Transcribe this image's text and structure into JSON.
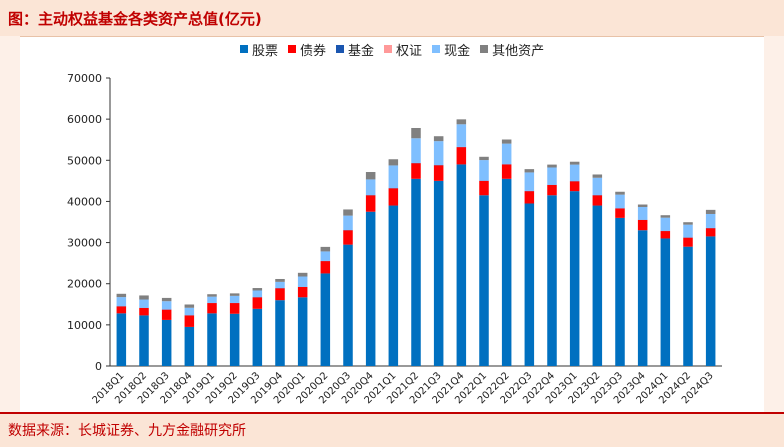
{
  "title": "图：主动权益基金各类资产总值(亿元)",
  "source": "数据来源：长城证券、九方金融研究所",
  "chart_data": {
    "type": "bar",
    "stacked": true,
    "categories": [
      "2018Q1",
      "2018Q2",
      "2018Q3",
      "2018Q4",
      "2019Q1",
      "2019Q2",
      "2019Q3",
      "2019Q4",
      "2020Q1",
      "2020Q2",
      "2020Q3",
      "2020Q4",
      "2021Q1",
      "2021Q2",
      "2021Q3",
      "2021Q4",
      "2022Q1",
      "2022Q2",
      "2022Q3",
      "2022Q4",
      "2023Q1",
      "2023Q2",
      "2023Q3",
      "2023Q4",
      "2024Q1",
      "2024Q2",
      "2024Q3"
    ],
    "series": [
      {
        "name": "股票",
        "color": "#0070c0",
        "values": [
          12800,
          12300,
          11200,
          9500,
          12800,
          12700,
          13900,
          16000,
          16700,
          22500,
          29500,
          37500,
          39000,
          45500,
          45000,
          49000,
          41500,
          45500,
          39500,
          41500,
          42500,
          39000,
          36000,
          33000,
          31000,
          29000,
          31500
        ]
      },
      {
        "name": "债券",
        "color": "#ff0000",
        "values": [
          1700,
          1800,
          2500,
          2800,
          2500,
          2600,
          2800,
          2900,
          2500,
          3000,
          3500,
          4000,
          4200,
          3800,
          3800,
          4200,
          3500,
          3500,
          3000,
          2500,
          2400,
          2500,
          2300,
          2500,
          1800,
          2200,
          2000
        ]
      },
      {
        "name": "基金",
        "color": "#1a56b0",
        "values": [
          50,
          50,
          50,
          50,
          50,
          50,
          50,
          50,
          50,
          50,
          50,
          50,
          50,
          50,
          50,
          50,
          50,
          50,
          50,
          50,
          50,
          50,
          50,
          50,
          50,
          50,
          50
        ]
      },
      {
        "name": "权证",
        "color": "#ff9999",
        "values": [
          0,
          0,
          0,
          0,
          0,
          0,
          0,
          0,
          0,
          0,
          0,
          0,
          0,
          0,
          0,
          0,
          0,
          0,
          0,
          0,
          0,
          0,
          0,
          0,
          0,
          0,
          0
        ]
      },
      {
        "name": "现金",
        "color": "#7fbfff",
        "values": [
          2200,
          2000,
          2000,
          1800,
          1500,
          1700,
          1600,
          1500,
          2500,
          2300,
          3500,
          3800,
          5500,
          6000,
          5800,
          5500,
          5000,
          5000,
          4500,
          4200,
          4000,
          4200,
          3300,
          3100,
          3200,
          3100,
          3400
        ]
      },
      {
        "name": "其他资产",
        "color": "#808080",
        "values": [
          800,
          1000,
          800,
          800,
          600,
          600,
          600,
          700,
          900,
          1100,
          1500,
          1800,
          1500,
          2500,
          1200,
          1200,
          800,
          1000,
          800,
          700,
          700,
          800,
          700,
          600,
          600,
          600,
          1000
        ]
      }
    ],
    "ylim": [
      0,
      70000
    ],
    "yticks": [
      0,
      10000,
      20000,
      30000,
      40000,
      50000,
      60000,
      70000
    ],
    "legend_position": "top"
  }
}
